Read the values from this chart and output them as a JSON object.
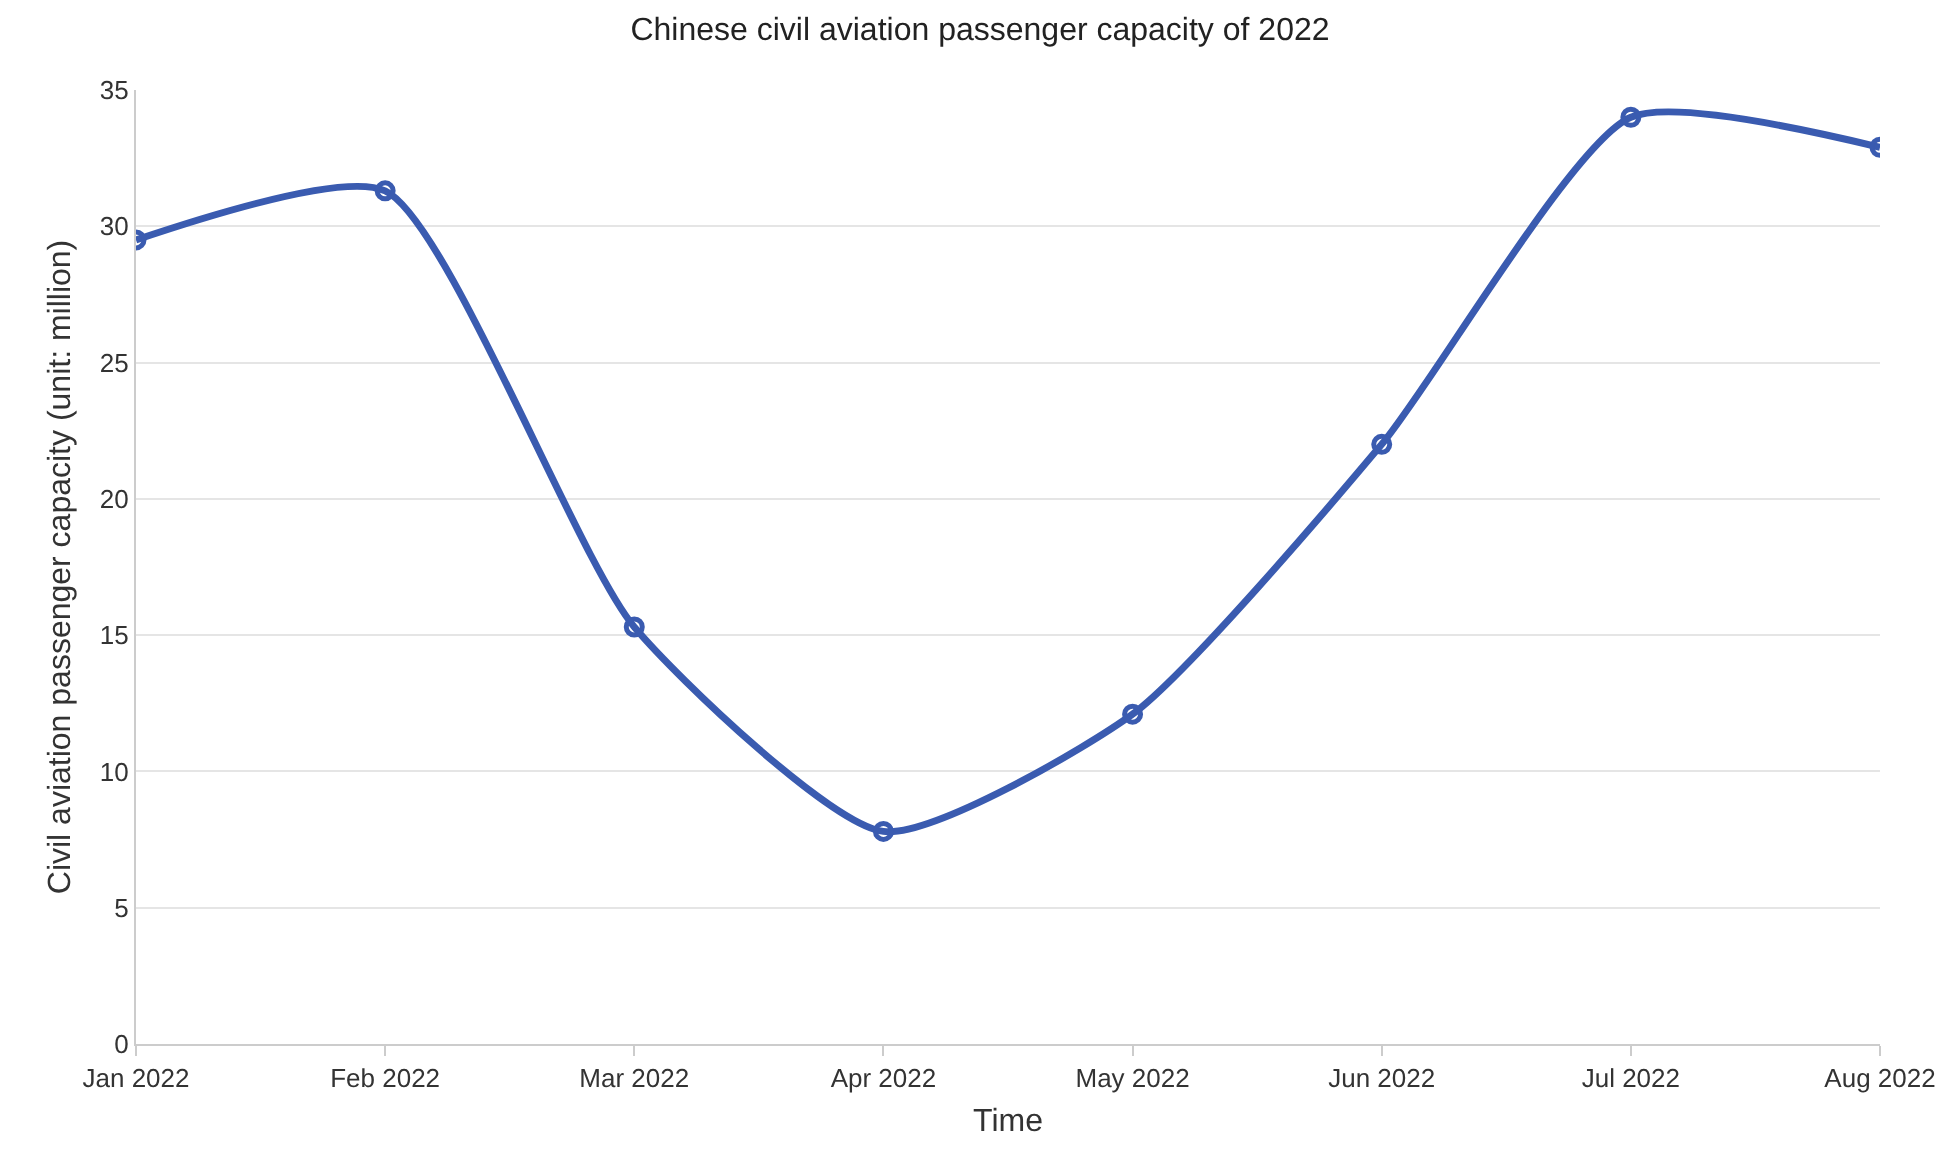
{
  "chart_data": {
    "type": "line",
    "title": "Chinese civil aviation passenger capacity of 2022",
    "xlabel": "Time",
    "ylabel": "Civil aviation passenger capacity (unit: million)",
    "categories": [
      "Jan 2022",
      "Feb 2022",
      "Mar 2022",
      "Apr 2022",
      "May 2022",
      "Jun 2022",
      "Jul 2022",
      "Aug 2022"
    ],
    "series": [
      {
        "color": "#3a5bb0",
        "values": [
          29.5,
          31.3,
          15.3,
          7.8,
          12.1,
          22.0,
          34.0,
          32.9
        ]
      }
    ],
    "ylim": [
      0,
      35
    ],
    "yticks": [
      0,
      5,
      10,
      15,
      20,
      25,
      30,
      35
    ],
    "grid": "y",
    "marker": "circle",
    "line_style": "solid"
  }
}
